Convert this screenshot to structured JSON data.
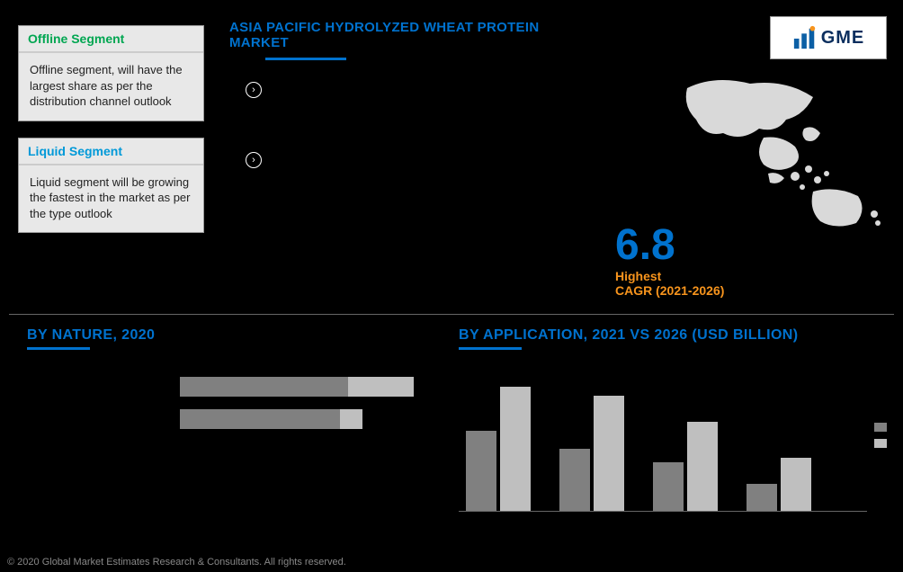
{
  "header": {
    "title": "ASIA PACIFIC HYDROLYZED WHEAT PROTEIN MARKET"
  },
  "logo": {
    "text": "GME"
  },
  "sidebar": {
    "cards": [
      {
        "title": "Offline Segment",
        "title_color": "#00A651",
        "body": "Offline segment, will have the largest share as per the distribution channel outlook"
      },
      {
        "title": "Liquid Segment",
        "title_color": "#0099D8",
        "body": "Liquid segment will be growing the fastest in the market as per the type outlook"
      }
    ]
  },
  "cagr": {
    "value": "6.8",
    "highest_label": "Highest",
    "period_label": "CAGR (2021-2026)"
  },
  "nature_chart": {
    "title": "BY NATURE, 2020",
    "type": "stacked-horizontal-bar",
    "rows": [
      {
        "seg1_pct": 72,
        "seg2_pct": 28,
        "total_width_pct": 100
      },
      {
        "seg1_pct": 88,
        "seg2_pct": 12,
        "total_width_pct": 78
      }
    ],
    "colors": {
      "seg1": "#808080",
      "seg2": "#BFBFBF"
    },
    "background_color": "#000000"
  },
  "application_chart": {
    "title": "BY APPLICATION, 2021 VS 2026 (USD BILLION)",
    "type": "grouped-bar",
    "groups": [
      {
        "y2021": 90,
        "y2026": 140
      },
      {
        "y2021": 70,
        "y2026": 130
      },
      {
        "y2021": 55,
        "y2026": 100
      },
      {
        "y2021": 30,
        "y2026": 60
      }
    ],
    "colors": {
      "y2021": "#808080",
      "y2026": "#BFBFBF"
    },
    "max_value": 150,
    "background_color": "#000000"
  },
  "footer": {
    "copyright": "© 2020 Global Market Estimates Research & Consultants. All rights reserved."
  },
  "palette": {
    "primary_blue": "#0072CE",
    "accent_orange": "#F7941D",
    "green": "#00A651",
    "light_blue": "#0099D8",
    "bg": "#000000"
  }
}
